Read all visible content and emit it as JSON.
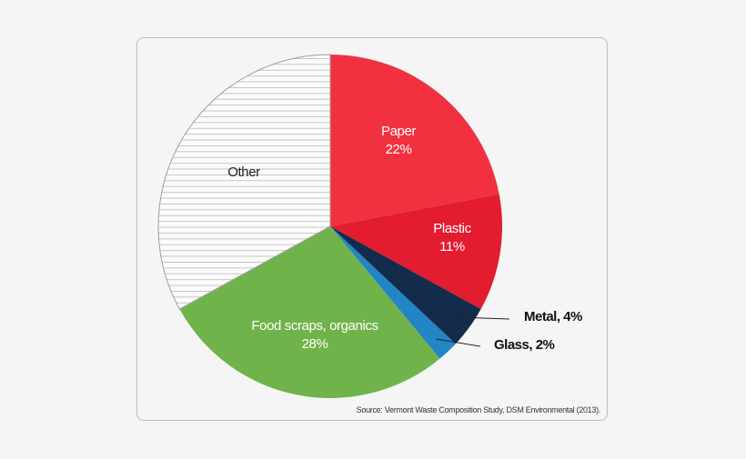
{
  "chart_data": {
    "type": "pie",
    "slices": [
      {
        "label": "Paper",
        "display": "22%",
        "value": 22,
        "color": "#f23140",
        "label_style": "inside",
        "text_color": "#ffffff"
      },
      {
        "label": "Plastic",
        "display": "11%",
        "value": 11,
        "color": "#e31c30",
        "label_style": "inside",
        "text_color": "#ffffff"
      },
      {
        "label": "Metal, 4%",
        "display": "",
        "value": 4,
        "color": "#142c4b",
        "label_style": "callout",
        "text_color": "#111111"
      },
      {
        "label": "Glass, 2%",
        "display": "",
        "value": 2,
        "color": "#2286c4",
        "label_style": "callout",
        "text_color": "#111111"
      },
      {
        "label": "Food scraps, organics",
        "display": "28%",
        "value": 28,
        "color": "#6fb34a",
        "label_style": "inside",
        "text_color": "#ffffff"
      },
      {
        "label": "Other",
        "display": "",
        "value": 33,
        "color": "hatched",
        "label_style": "inside",
        "text_color": "#222222"
      }
    ],
    "start_angle_deg": 0,
    "direction": "clockwise",
    "source": "Source: Vermont Waste Composition Study, DSM Environmental (2013)."
  }
}
